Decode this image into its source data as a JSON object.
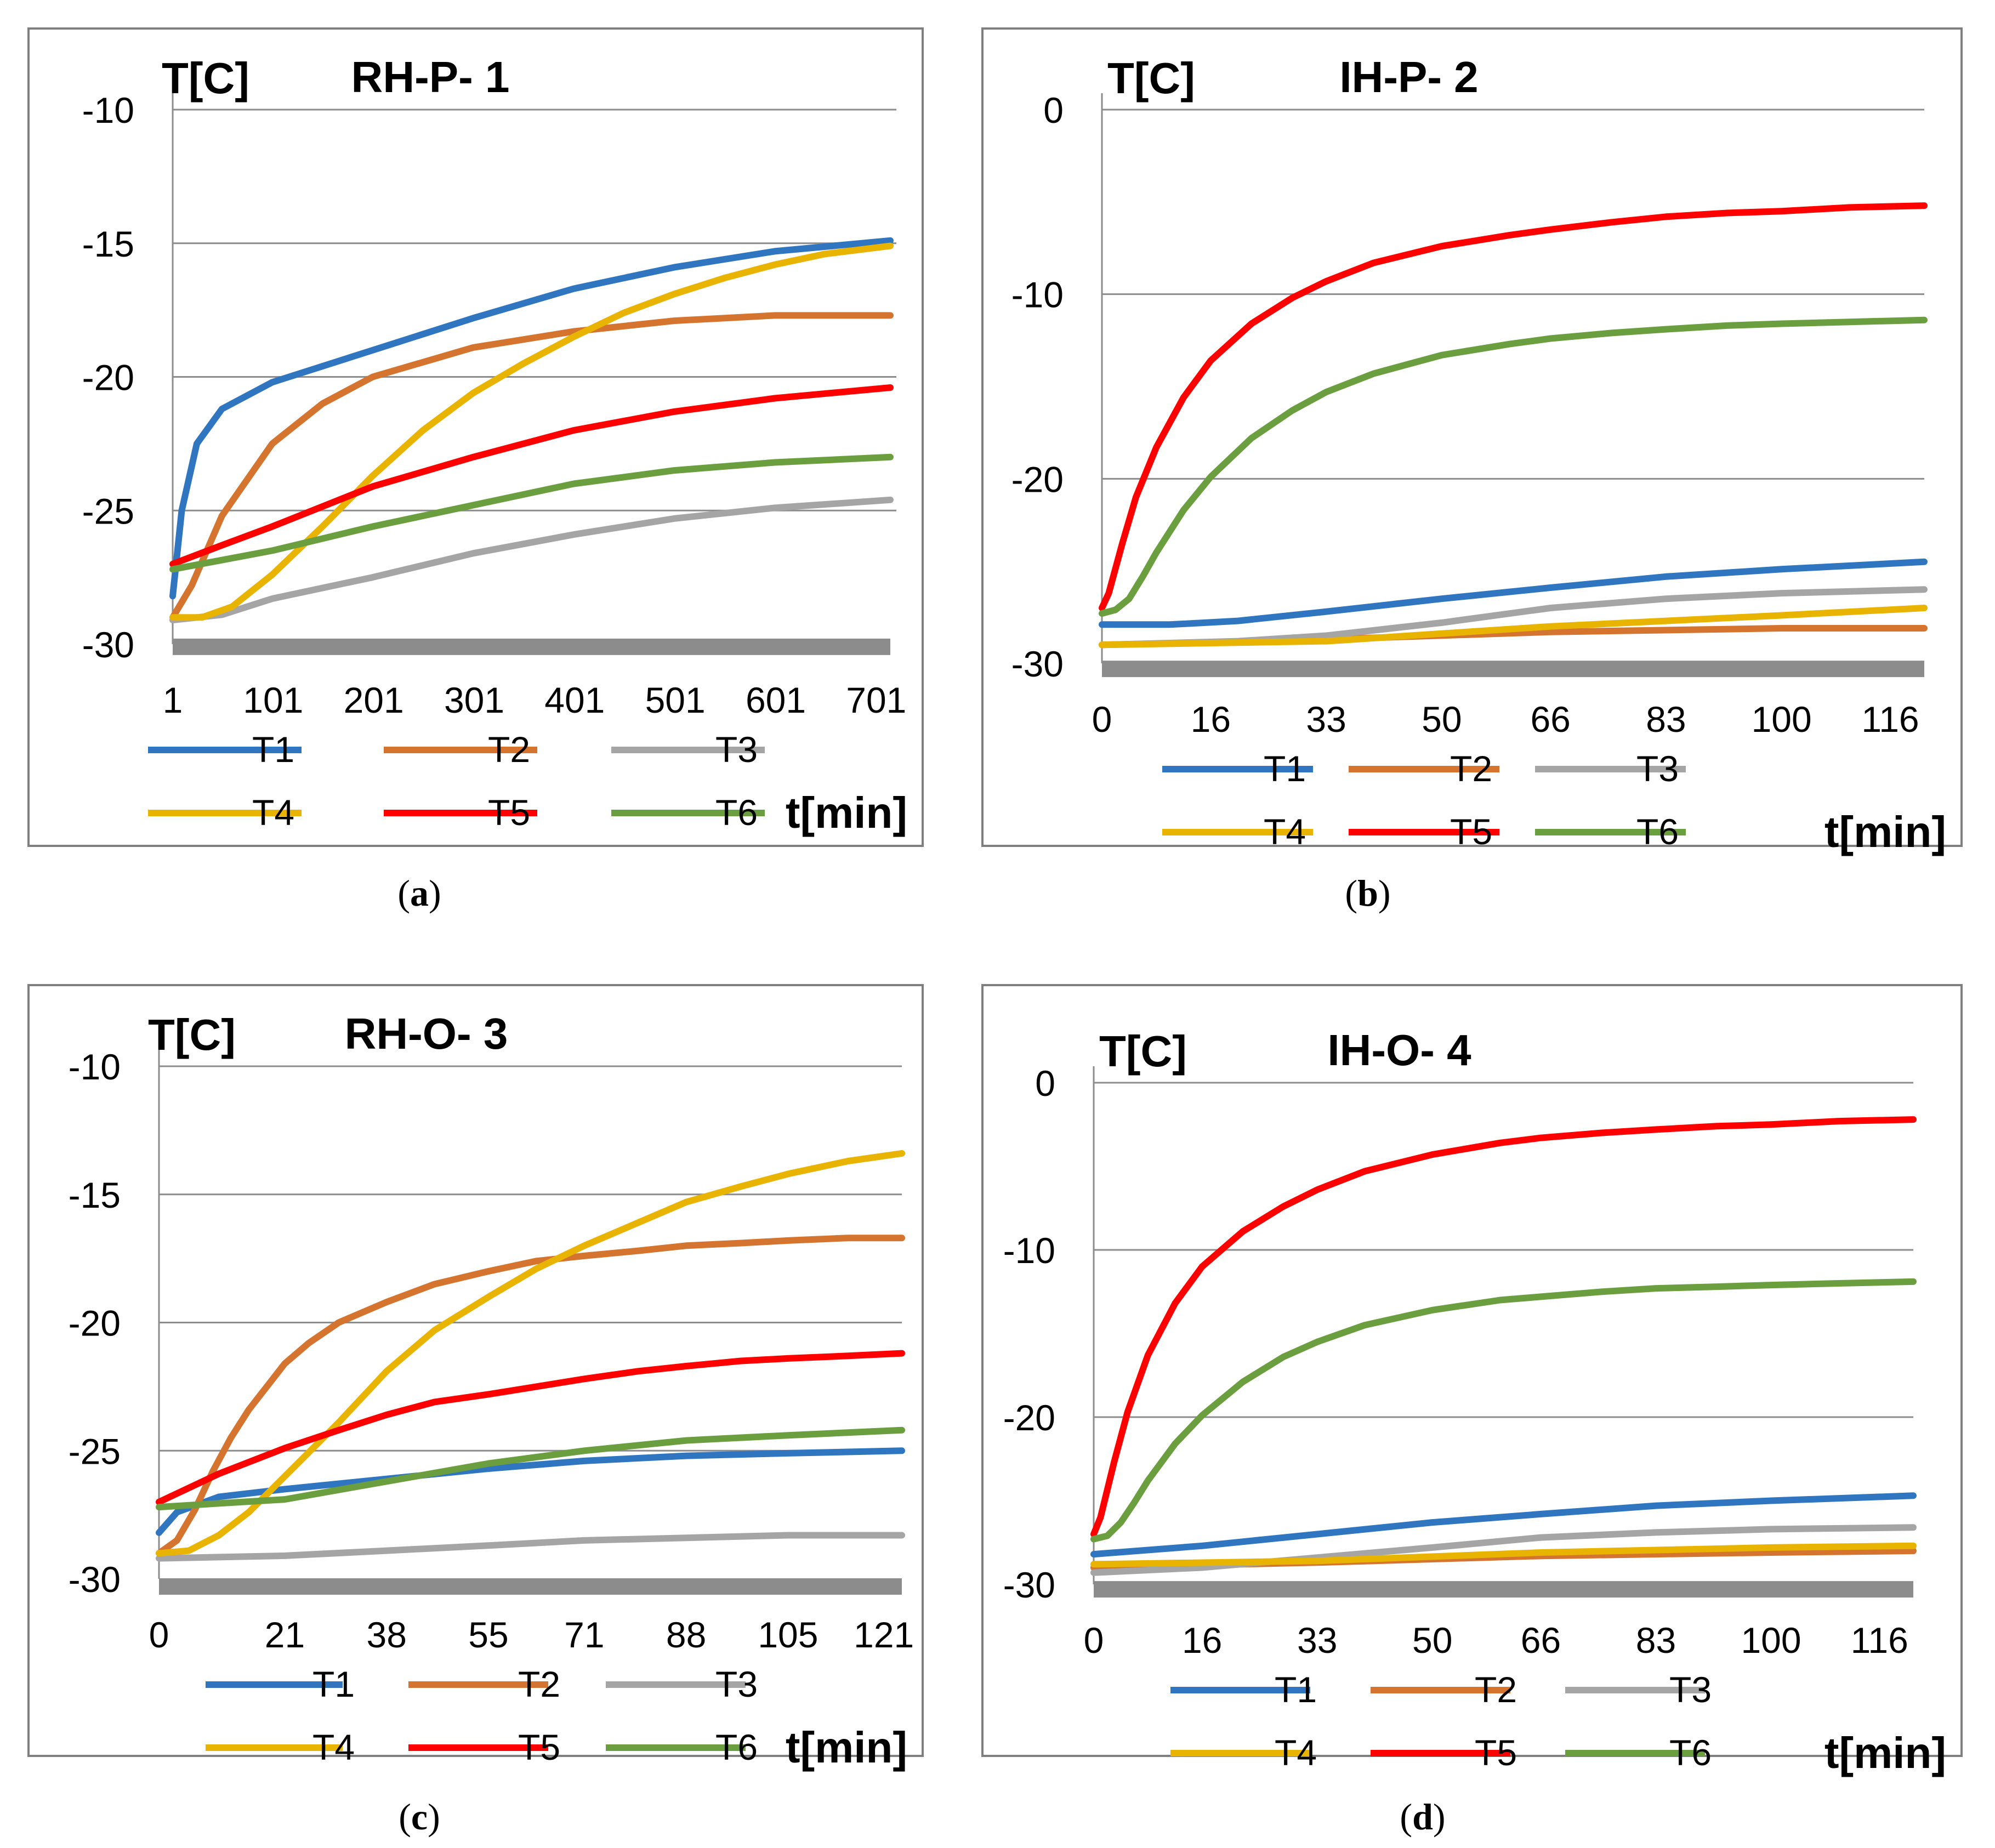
{
  "series_colors": {
    "T1": "#2f75c0",
    "T2": "#d4742e",
    "T3": "#a5a5a5",
    "T4": "#e8b400",
    "T5": "#ff0000",
    "T6": "#6a9e3f"
  },
  "legend_names": [
    "T1",
    "T2",
    "T3",
    "T4",
    "T5",
    "T6"
  ],
  "captions": [
    "a",
    "b",
    "c",
    "d"
  ],
  "chart_data": [
    {
      "type": "line",
      "title": "RH-P- 1",
      "ylabel": "T[C]",
      "xlabel": "t[min]",
      "ylim": [
        -30,
        -10
      ],
      "yticks": [
        -10,
        -15,
        -20,
        -25,
        -30
      ],
      "xlim": [
        1,
        721
      ],
      "xticks": [
        1,
        101,
        201,
        301,
        401,
        501,
        601,
        701
      ],
      "grid": true,
      "legend": "bottom",
      "series": [
        {
          "name": "T1",
          "x": [
            1,
            10,
            25,
            50,
            100,
            200,
            300,
            400,
            500,
            600,
            715
          ],
          "y": [
            -28.2,
            -25,
            -22.5,
            -21.2,
            -20.2,
            -19,
            -17.8,
            -16.7,
            -15.9,
            -15.3,
            -14.9
          ]
        },
        {
          "name": "T2",
          "x": [
            1,
            20,
            50,
            100,
            150,
            200,
            300,
            400,
            500,
            600,
            715
          ],
          "y": [
            -29,
            -27.8,
            -25.2,
            -22.5,
            -21,
            -20,
            -18.9,
            -18.3,
            -17.9,
            -17.7,
            -17.7
          ]
        },
        {
          "name": "T3",
          "x": [
            1,
            50,
            100,
            200,
            300,
            400,
            500,
            600,
            715
          ],
          "y": [
            -29.1,
            -28.9,
            -28.3,
            -27.5,
            -26.6,
            -25.9,
            -25.3,
            -24.9,
            -24.6
          ]
        },
        {
          "name": "T4",
          "x": [
            1,
            30,
            60,
            100,
            150,
            200,
            250,
            300,
            350,
            400,
            450,
            500,
            550,
            600,
            650,
            715
          ],
          "y": [
            -29,
            -29,
            -28.6,
            -27.4,
            -25.6,
            -23.7,
            -22,
            -20.6,
            -19.5,
            -18.5,
            -17.6,
            -16.9,
            -16.3,
            -15.8,
            -15.4,
            -15.1
          ]
        },
        {
          "name": "T5",
          "x": [
            1,
            50,
            100,
            200,
            300,
            400,
            500,
            600,
            715
          ],
          "y": [
            -27,
            -26.3,
            -25.6,
            -24.1,
            -23,
            -22,
            -21.3,
            -20.8,
            -20.4
          ]
        },
        {
          "name": "T6",
          "x": [
            1,
            100,
            200,
            300,
            400,
            500,
            600,
            715
          ],
          "y": [
            -27.2,
            -26.5,
            -25.6,
            -24.8,
            -24,
            -23.5,
            -23.2,
            -23
          ]
        },
        {
          "name": "baseline",
          "x": [
            1,
            715
          ],
          "y": [
            -30.1,
            -30.1
          ]
        }
      ]
    },
    {
      "type": "line",
      "title": "IH-P- 2",
      "ylabel": "T[C]",
      "xlabel": "t[min]",
      "ylim": [
        -30,
        0
      ],
      "yticks": [
        0,
        -10,
        -20,
        -30
      ],
      "xlim": [
        0,
        121
      ],
      "xticks": [
        0,
        16,
        33,
        50,
        66,
        83,
        100,
        116
      ],
      "grid": true,
      "legend": "bottom",
      "series": [
        {
          "name": "T1",
          "x": [
            0,
            10,
            20,
            33,
            50,
            66,
            83,
            100,
            121
          ],
          "y": [
            -27.9,
            -27.9,
            -27.7,
            -27.2,
            -26.5,
            -25.9,
            -25.3,
            -24.9,
            -24.5
          ]
        },
        {
          "name": "T2",
          "x": [
            0,
            33,
            66,
            100,
            121
          ],
          "y": [
            -29,
            -28.7,
            -28.3,
            -28.1,
            -28.1
          ]
        },
        {
          "name": "T3",
          "x": [
            0,
            20,
            33,
            50,
            66,
            83,
            100,
            121
          ],
          "y": [
            -29,
            -28.8,
            -28.5,
            -27.8,
            -27,
            -26.5,
            -26.2,
            -26
          ]
        },
        {
          "name": "T4",
          "x": [
            0,
            33,
            66,
            100,
            121
          ],
          "y": [
            -29,
            -28.8,
            -28,
            -27.4,
            -27
          ]
        },
        {
          "name": "T5",
          "x": [
            0,
            1,
            3,
            5,
            8,
            12,
            16,
            22,
            28,
            33,
            40,
            50,
            60,
            66,
            75,
            83,
            92,
            100,
            110,
            121
          ],
          "y": [
            -27,
            -26.2,
            -23.5,
            -21,
            -18.3,
            -15.6,
            -13.6,
            -11.6,
            -10.2,
            -9.3,
            -8.3,
            -7.4,
            -6.8,
            -6.5,
            -6.1,
            -5.8,
            -5.6,
            -5.5,
            -5.3,
            -5.2
          ]
        },
        {
          "name": "T6",
          "x": [
            0,
            2,
            4,
            6,
            8,
            12,
            16,
            22,
            28,
            33,
            40,
            50,
            60,
            66,
            75,
            83,
            92,
            100,
            110,
            121
          ],
          "y": [
            -27.3,
            -27.1,
            -26.5,
            -25.3,
            -24,
            -21.7,
            -19.9,
            -17.8,
            -16.3,
            -15.3,
            -14.3,
            -13.3,
            -12.7,
            -12.4,
            -12.1,
            -11.9,
            -11.7,
            -11.6,
            -11.5,
            -11.4
          ]
        },
        {
          "name": "baseline",
          "x": [
            0,
            121
          ],
          "y": [
            -30.3,
            -30.3
          ]
        }
      ]
    },
    {
      "type": "line",
      "title": "RH-O- 3",
      "ylabel": "T[C]",
      "xlabel": "t[min]",
      "ylim": [
        -30,
        -10
      ],
      "yticks": [
        -10,
        -15,
        -20,
        -25,
        -30
      ],
      "xlim": [
        0,
        124
      ],
      "xticks": [
        0,
        21,
        38,
        55,
        71,
        88,
        105,
        121
      ],
      "grid": true,
      "legend": "bottom",
      "series": [
        {
          "name": "T1",
          "x": [
            0,
            3,
            10,
            21,
            38,
            55,
            71,
            88,
            105,
            124
          ],
          "y": [
            -28.2,
            -27.4,
            -26.8,
            -26.5,
            -26.1,
            -25.7,
            -25.4,
            -25.2,
            -25.1,
            -25
          ]
        },
        {
          "name": "T2",
          "x": [
            0,
            3,
            6,
            9,
            12,
            15,
            18,
            21,
            25,
            30,
            38,
            46,
            55,
            63,
            71,
            80,
            88,
            97,
            105,
            115,
            124
          ],
          "y": [
            -29,
            -28.5,
            -27.3,
            -25.8,
            -24.5,
            -23.4,
            -22.5,
            -21.6,
            -20.8,
            -20,
            -19.2,
            -18.5,
            -18,
            -17.6,
            -17.4,
            -17.2,
            -17,
            -16.9,
            -16.8,
            -16.7,
            -16.7
          ]
        },
        {
          "name": "T3",
          "x": [
            0,
            21,
            38,
            55,
            71,
            88,
            105,
            124
          ],
          "y": [
            -29.2,
            -29.1,
            -28.9,
            -28.7,
            -28.5,
            -28.4,
            -28.3,
            -28.3
          ]
        },
        {
          "name": "T4",
          "x": [
            0,
            5,
            10,
            15,
            21,
            30,
            38,
            46,
            55,
            63,
            71,
            80,
            88,
            97,
            105,
            115,
            124
          ],
          "y": [
            -29,
            -28.9,
            -28.3,
            -27.4,
            -26,
            -23.9,
            -21.9,
            -20.3,
            -19,
            -17.9,
            -17,
            -16.1,
            -15.3,
            -14.7,
            -14.2,
            -13.7,
            -13.4
          ]
        },
        {
          "name": "T5",
          "x": [
            0,
            10,
            21,
            30,
            38,
            46,
            55,
            63,
            71,
            80,
            88,
            97,
            105,
            115,
            124
          ],
          "y": [
            -27,
            -25.9,
            -24.9,
            -24.2,
            -23.6,
            -23.1,
            -22.8,
            -22.5,
            -22.2,
            -21.9,
            -21.7,
            -21.5,
            -21.4,
            -21.3,
            -21.2
          ]
        },
        {
          "name": "T6",
          "x": [
            0,
            21,
            38,
            55,
            71,
            88,
            105,
            124
          ],
          "y": [
            -27.2,
            -26.9,
            -26.2,
            -25.5,
            -25,
            -24.6,
            -24.4,
            -24.2
          ]
        },
        {
          "name": "baseline",
          "x": [
            0,
            124
          ],
          "y": [
            -30.3,
            -30.3
          ]
        }
      ]
    },
    {
      "type": "line",
      "title": "IH-O- 4",
      "ylabel": "T[C]",
      "xlabel": "t[min]",
      "ylim": [
        -30,
        0
      ],
      "yticks": [
        0,
        -10,
        -20,
        -30
      ],
      "xlim": [
        0,
        121
      ],
      "xticks": [
        0,
        16,
        33,
        50,
        66,
        83,
        100,
        116
      ],
      "grid": true,
      "legend": "bottom",
      "series": [
        {
          "name": "T1",
          "x": [
            0,
            16,
            33,
            50,
            66,
            83,
            100,
            121
          ],
          "y": [
            -28.2,
            -27.7,
            -27,
            -26.3,
            -25.8,
            -25.3,
            -25,
            -24.7
          ]
        },
        {
          "name": "T2",
          "x": [
            0,
            33,
            66,
            100,
            121
          ],
          "y": [
            -29,
            -28.7,
            -28.3,
            -28.1,
            -28
          ]
        },
        {
          "name": "T3",
          "x": [
            0,
            16,
            33,
            50,
            66,
            83,
            100,
            121
          ],
          "y": [
            -29.3,
            -29,
            -28.4,
            -27.8,
            -27.2,
            -26.9,
            -26.7,
            -26.6
          ]
        },
        {
          "name": "T4",
          "x": [
            0,
            33,
            66,
            100,
            121
          ],
          "y": [
            -28.8,
            -28.6,
            -28.1,
            -27.8,
            -27.7
          ]
        },
        {
          "name": "T5",
          "x": [
            0,
            1,
            3,
            5,
            8,
            12,
            16,
            22,
            28,
            33,
            40,
            50,
            60,
            66,
            75,
            83,
            92,
            100,
            110,
            121
          ],
          "y": [
            -27,
            -26,
            -22.7,
            -19.7,
            -16.3,
            -13.2,
            -11,
            -8.9,
            -7.4,
            -6.4,
            -5.3,
            -4.3,
            -3.6,
            -3.3,
            -3,
            -2.8,
            -2.6,
            -2.5,
            -2.3,
            -2.2
          ]
        },
        {
          "name": "T6",
          "x": [
            0,
            2,
            4,
            6,
            8,
            12,
            16,
            22,
            28,
            33,
            40,
            50,
            60,
            66,
            75,
            83,
            92,
            100,
            110,
            121
          ],
          "y": [
            -27.3,
            -27.1,
            -26.3,
            -25.1,
            -23.8,
            -21.6,
            -19.9,
            -17.9,
            -16.4,
            -15.5,
            -14.5,
            -13.6,
            -13,
            -12.8,
            -12.5,
            -12.3,
            -12.2,
            -12.1,
            -12,
            -11.9
          ]
        },
        {
          "name": "baseline",
          "x": [
            0,
            121
          ],
          "y": [
            -30.3,
            -30.3
          ]
        }
      ]
    }
  ]
}
